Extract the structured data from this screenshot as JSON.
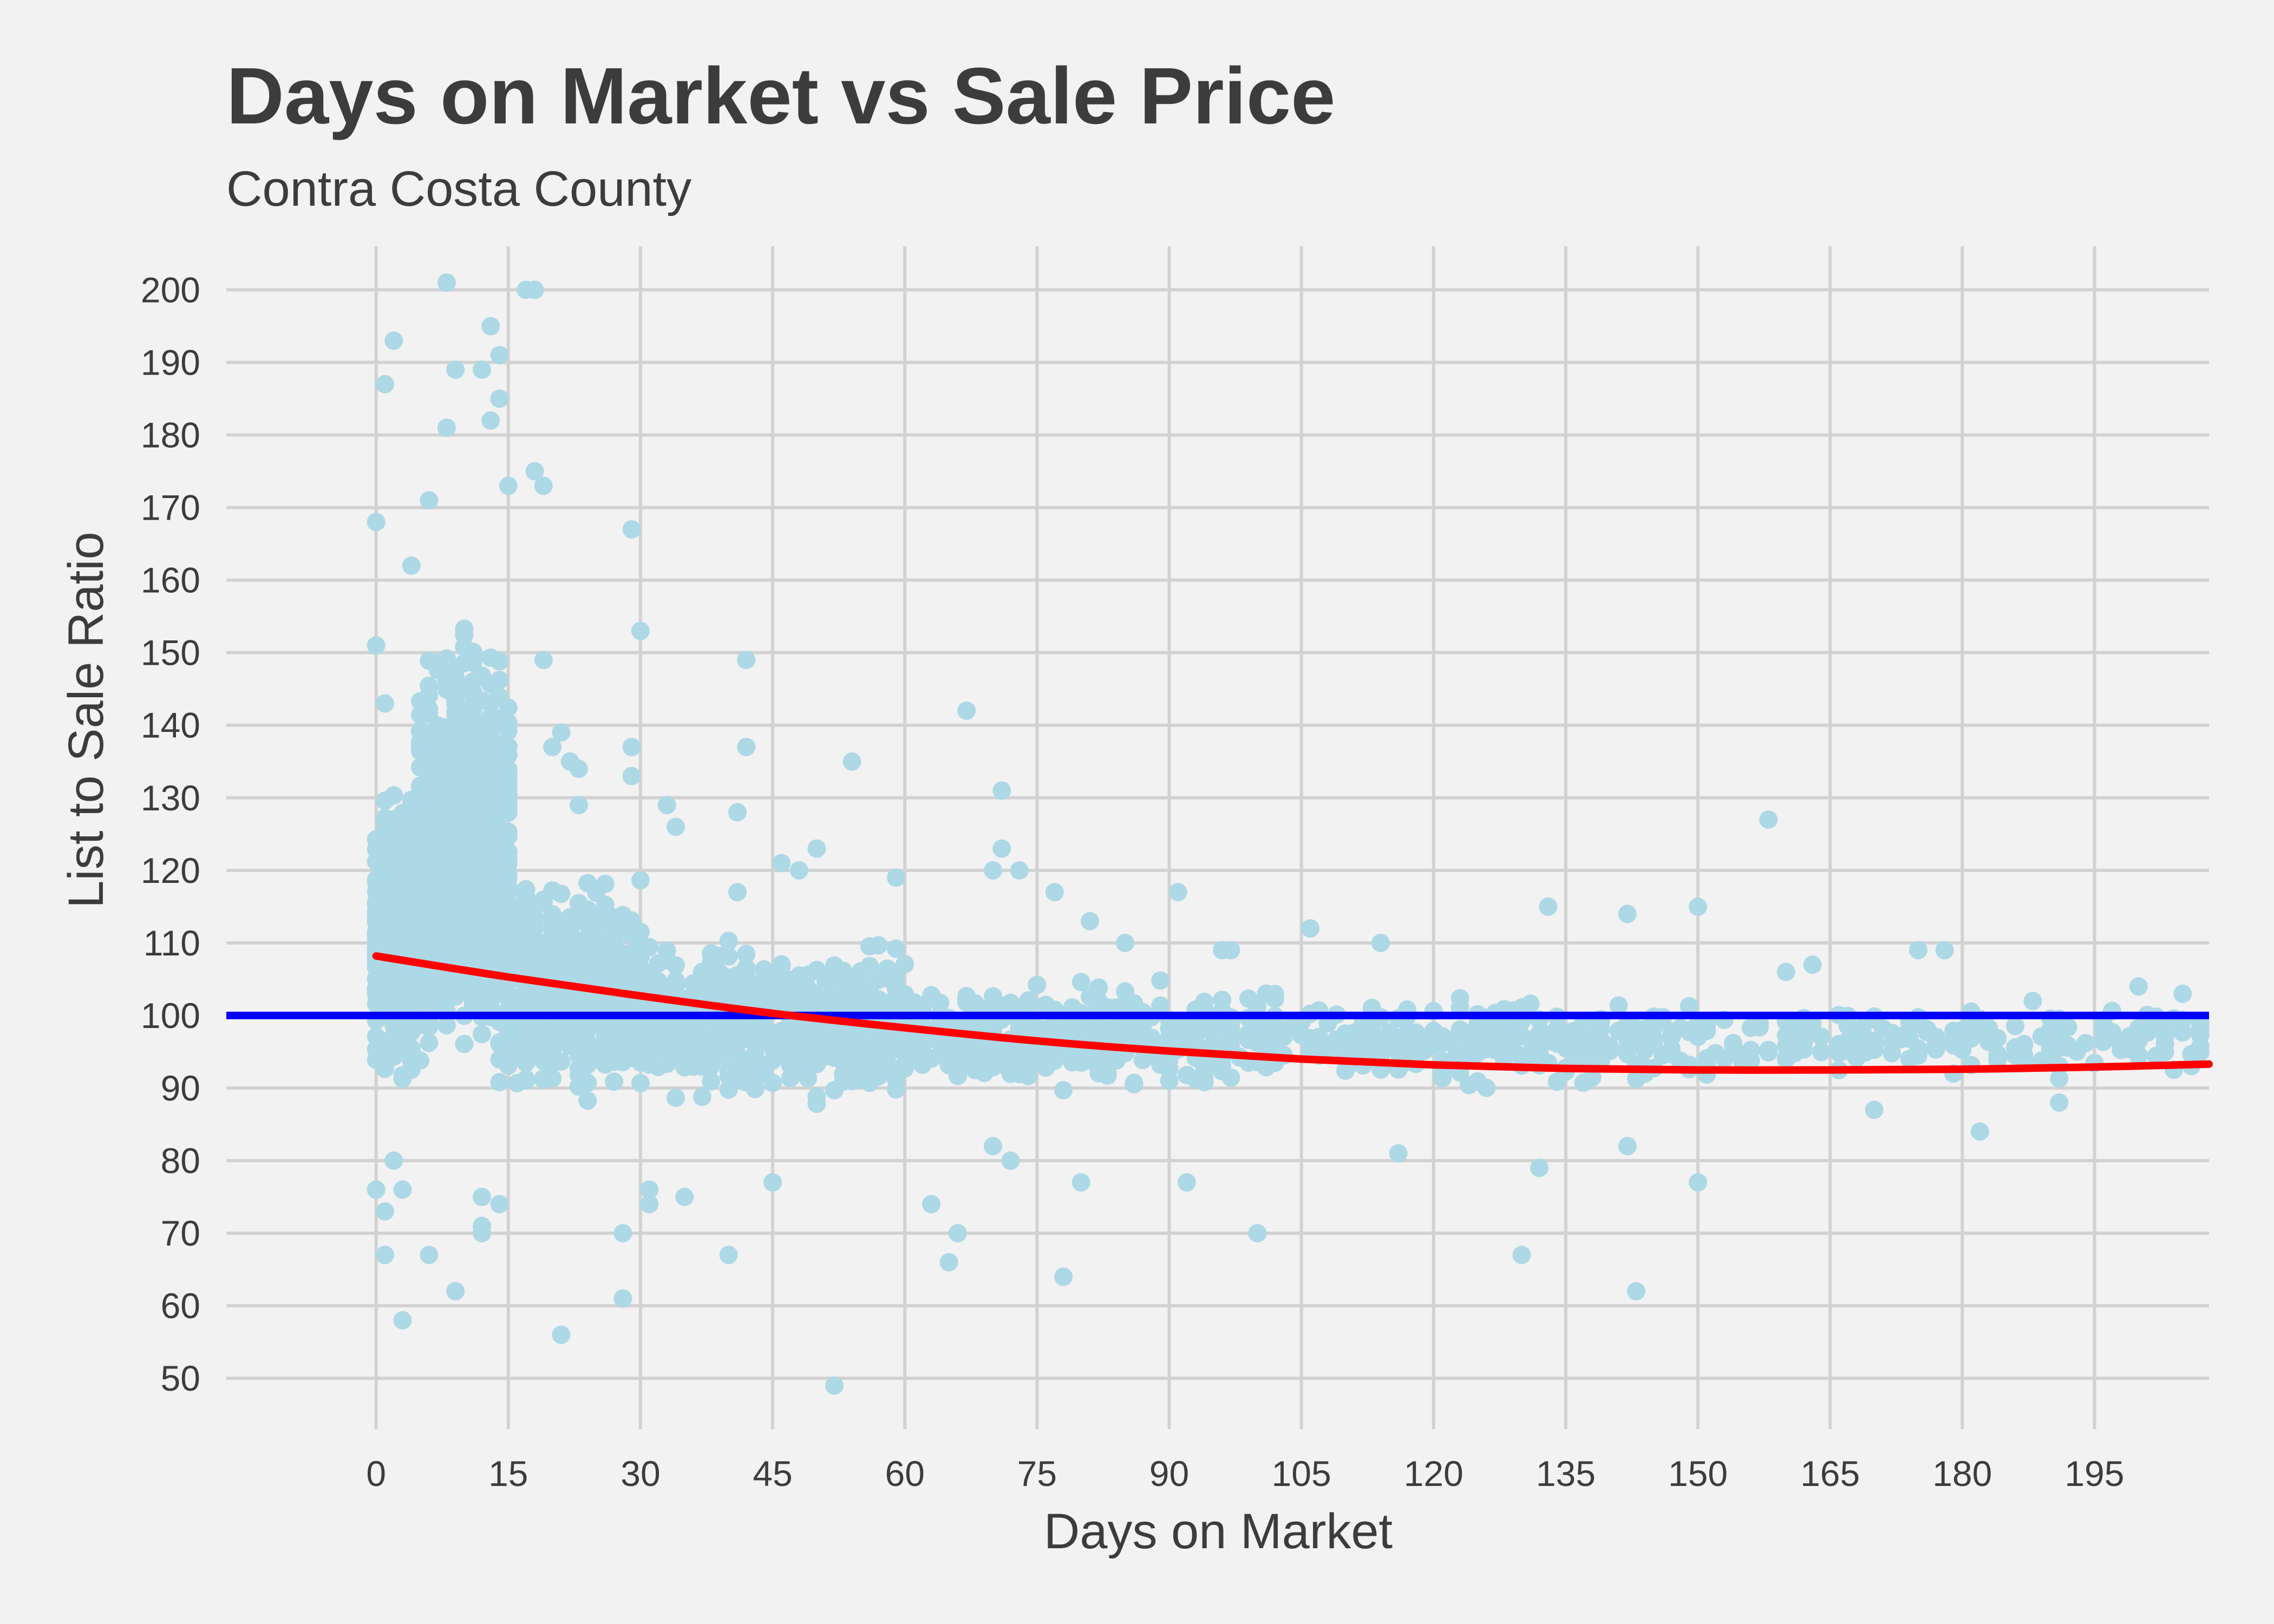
{
  "chart_data": {
    "type": "scatter",
    "title": "Days on Market vs Sale Price",
    "subtitle": "Contra Costa County",
    "xlabel": "Days on Market",
    "ylabel": "List to Sale Ratio",
    "xlim": [
      -17,
      208
    ],
    "ylim": [
      43,
      206
    ],
    "x_ticks": [
      0,
      15,
      30,
      45,
      60,
      75,
      90,
      105,
      120,
      135,
      150,
      165,
      180,
      195
    ],
    "y_ticks": [
      50,
      60,
      70,
      80,
      90,
      100,
      110,
      120,
      130,
      140,
      150,
      160,
      170,
      180,
      190,
      200
    ],
    "grid": true,
    "colors": {
      "background": "#f2f2f2",
      "points": "#add8e6",
      "trend": "#ff0000",
      "reference": "#0000ff",
      "grid": "#d2d2d2",
      "text": "#3c3c3c"
    },
    "reference_line": {
      "y": 100
    },
    "trend_line": {
      "x": [
        0,
        15,
        30,
        45,
        60,
        75,
        90,
        105,
        120,
        135,
        150,
        165,
        180,
        195,
        208
      ],
      "y": [
        108.2,
        105.3,
        102.7,
        100.3,
        98.3,
        96.5,
        95.1,
        94.0,
        93.2,
        92.7,
        92.5,
        92.5,
        92.6,
        92.9,
        93.3
      ]
    },
    "point_clusters": [
      {
        "x_range": [
          0,
          5
        ],
        "y_range": [
          88,
          135
        ],
        "count": 450
      },
      {
        "x_range": [
          5,
          15
        ],
        "y_range": [
          86,
          158
        ],
        "count": 900
      },
      {
        "x_range": [
          15,
          30
        ],
        "y_range": [
          86,
          122
        ],
        "count": 500
      },
      {
        "x_range": [
          30,
          60
        ],
        "y_range": [
          86,
          112
        ],
        "count": 550
      },
      {
        "x_range": [
          60,
          100
        ],
        "y_range": [
          88,
          106
        ],
        "count": 380
      },
      {
        "x_range": [
          100,
          150
        ],
        "y_range": [
          89,
          104
        ],
        "count": 260
      },
      {
        "x_range": [
          150,
          208
        ],
        "y_range": [
          91,
          102
        ],
        "count": 180
      }
    ],
    "outliers": [
      [
        8,
        201
      ],
      [
        17,
        200
      ],
      [
        18,
        200
      ],
      [
        2,
        193
      ],
      [
        13,
        195
      ],
      [
        14,
        191
      ],
      [
        1,
        187
      ],
      [
        9,
        189
      ],
      [
        12,
        189
      ],
      [
        8,
        181
      ],
      [
        13,
        182
      ],
      [
        14,
        185
      ],
      [
        18,
        175
      ],
      [
        19,
        173
      ],
      [
        0,
        168
      ],
      [
        6,
        171
      ],
      [
        15,
        173
      ],
      [
        29,
        167
      ],
      [
        4,
        162
      ],
      [
        30,
        153
      ],
      [
        0,
        151
      ],
      [
        19,
        149
      ],
      [
        42,
        149
      ],
      [
        1,
        143
      ],
      [
        21,
        139
      ],
      [
        20,
        137
      ],
      [
        42,
        137
      ],
      [
        29,
        137
      ],
      [
        67,
        142
      ],
      [
        54,
        135
      ],
      [
        22,
        135
      ],
      [
        23,
        134
      ],
      [
        29,
        133
      ],
      [
        71,
        131
      ],
      [
        33,
        129
      ],
      [
        23,
        129
      ],
      [
        41,
        128
      ],
      [
        34,
        126
      ],
      [
        71,
        123
      ],
      [
        50,
        123
      ],
      [
        46,
        121
      ],
      [
        70,
        120
      ],
      [
        73,
        120
      ],
      [
        59,
        119
      ],
      [
        48,
        120
      ],
      [
        158,
        127
      ],
      [
        41,
        117
      ],
      [
        77,
        117
      ],
      [
        91,
        117
      ],
      [
        133,
        115
      ],
      [
        150,
        115
      ],
      [
        142,
        114
      ],
      [
        106,
        112
      ],
      [
        81,
        113
      ],
      [
        97,
        109
      ],
      [
        175,
        109
      ],
      [
        178,
        109
      ],
      [
        2,
        80
      ],
      [
        3,
        76
      ],
      [
        0,
        76
      ],
      [
        1,
        73
      ],
      [
        1,
        67
      ],
      [
        6,
        67
      ],
      [
        3,
        58
      ],
      [
        9,
        62
      ],
      [
        12,
        75
      ],
      [
        12,
        71
      ],
      [
        12,
        70
      ],
      [
        14,
        74
      ],
      [
        21,
        56
      ],
      [
        28,
        70
      ],
      [
        28,
        61
      ],
      [
        31,
        76
      ],
      [
        31,
        74
      ],
      [
        35,
        75
      ],
      [
        40,
        67
      ],
      [
        45,
        77
      ],
      [
        52,
        49
      ],
      [
        63,
        74
      ],
      [
        65,
        66
      ],
      [
        66,
        70
      ],
      [
        70,
        82
      ],
      [
        72,
        80
      ],
      [
        78,
        64
      ],
      [
        80,
        77
      ],
      [
        92,
        77
      ],
      [
        100,
        70
      ],
      [
        130,
        67
      ],
      [
        132,
        79
      ],
      [
        143,
        62
      ],
      [
        150,
        77
      ],
      [
        116,
        81
      ],
      [
        142,
        82
      ],
      [
        170,
        87
      ],
      [
        182,
        84
      ],
      [
        191,
        88
      ],
      [
        114,
        110
      ],
      [
        200,
        104
      ],
      [
        205,
        103
      ],
      [
        188,
        102
      ],
      [
        163,
        107
      ],
      [
        160,
        106
      ],
      [
        96,
        109
      ],
      [
        85,
        110
      ]
    ]
  }
}
